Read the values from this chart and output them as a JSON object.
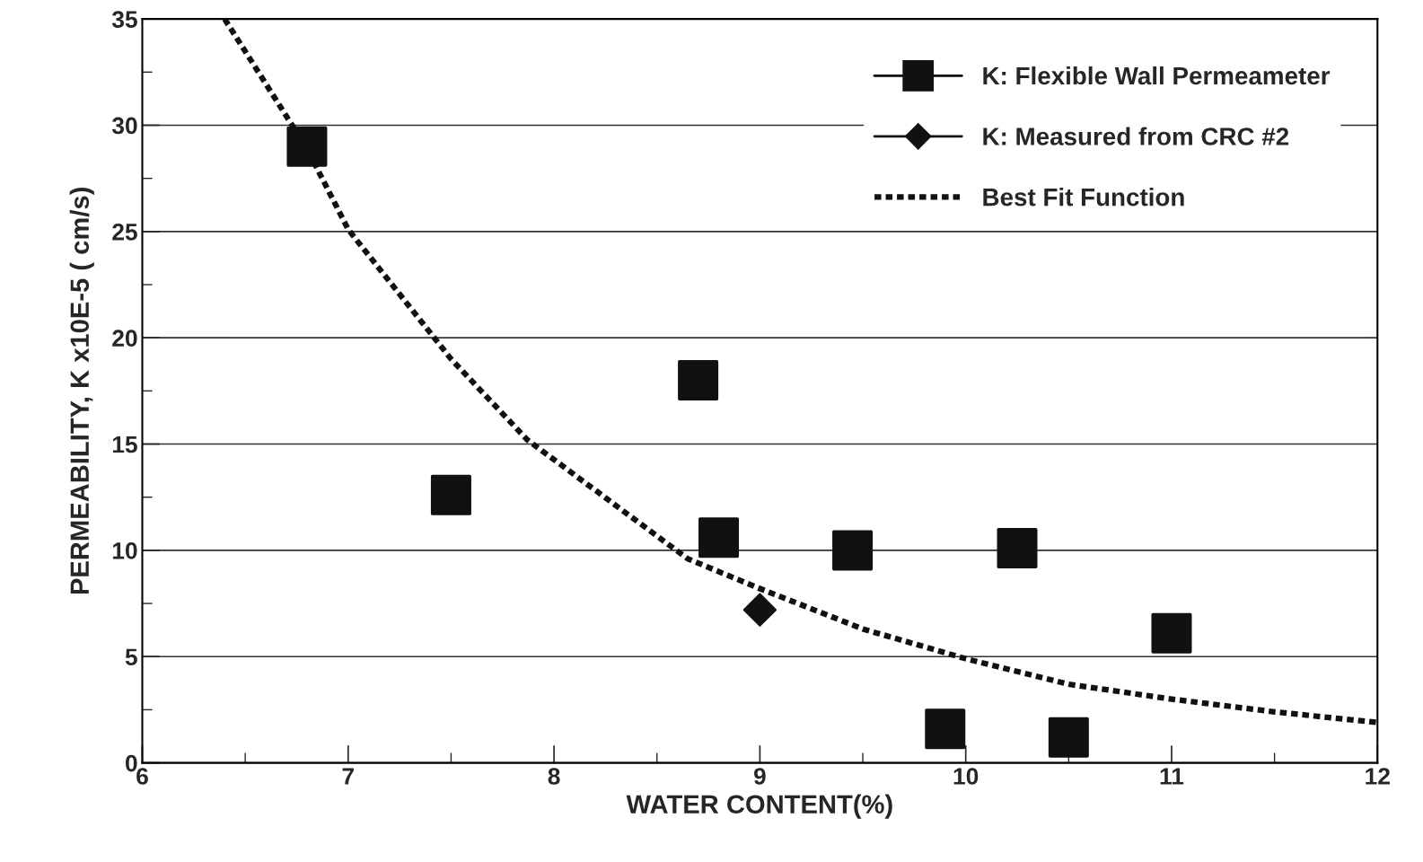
{
  "chart_data": {
    "type": "scatter",
    "xlabel": "WATER CONTENT(%)",
    "ylabel": "PERMEABILITY, K x10E-5 ( cm/s)",
    "xlim": [
      6,
      12
    ],
    "xticks": [
      6,
      7,
      8,
      9,
      10,
      11,
      12
    ],
    "ylim": [
      0,
      35
    ],
    "yticks": [
      0,
      5,
      10,
      15,
      20,
      25,
      30,
      35
    ],
    "grid": "y",
    "legend": "top right",
    "series": [
      {
        "name": "K: Flexible Wall Permeameter",
        "marker": "square",
        "color": "#111111",
        "x": [
          6.8,
          7.5,
          8.7,
          8.8,
          9.45,
          10.25,
          11,
          9.9,
          10.5
        ],
        "values": [
          29,
          12.6,
          18,
          10.6,
          10,
          10.1,
          6.1,
          1.6,
          1.2
        ]
      },
      {
        "name": "K: Measured from CRC #2",
        "marker": "diamond",
        "color": "#111111",
        "x": [
          9.0
        ],
        "values": [
          7.2
        ]
      },
      {
        "name": "Best Fit Function",
        "type": "line",
        "line_style": "dotted",
        "marker": "none",
        "color": "#111111",
        "x": [
          6.4,
          6.8,
          7,
          7.5,
          7.87,
          8.65,
          9,
          9.5,
          10,
          10.5,
          11,
          11.5,
          12
        ],
        "values": [
          35,
          28.9,
          25.1,
          19,
          15.2,
          9.6,
          8.2,
          6.3,
          4.9,
          3.7,
          3.0,
          2.4,
          1.9
        ]
      }
    ]
  }
}
